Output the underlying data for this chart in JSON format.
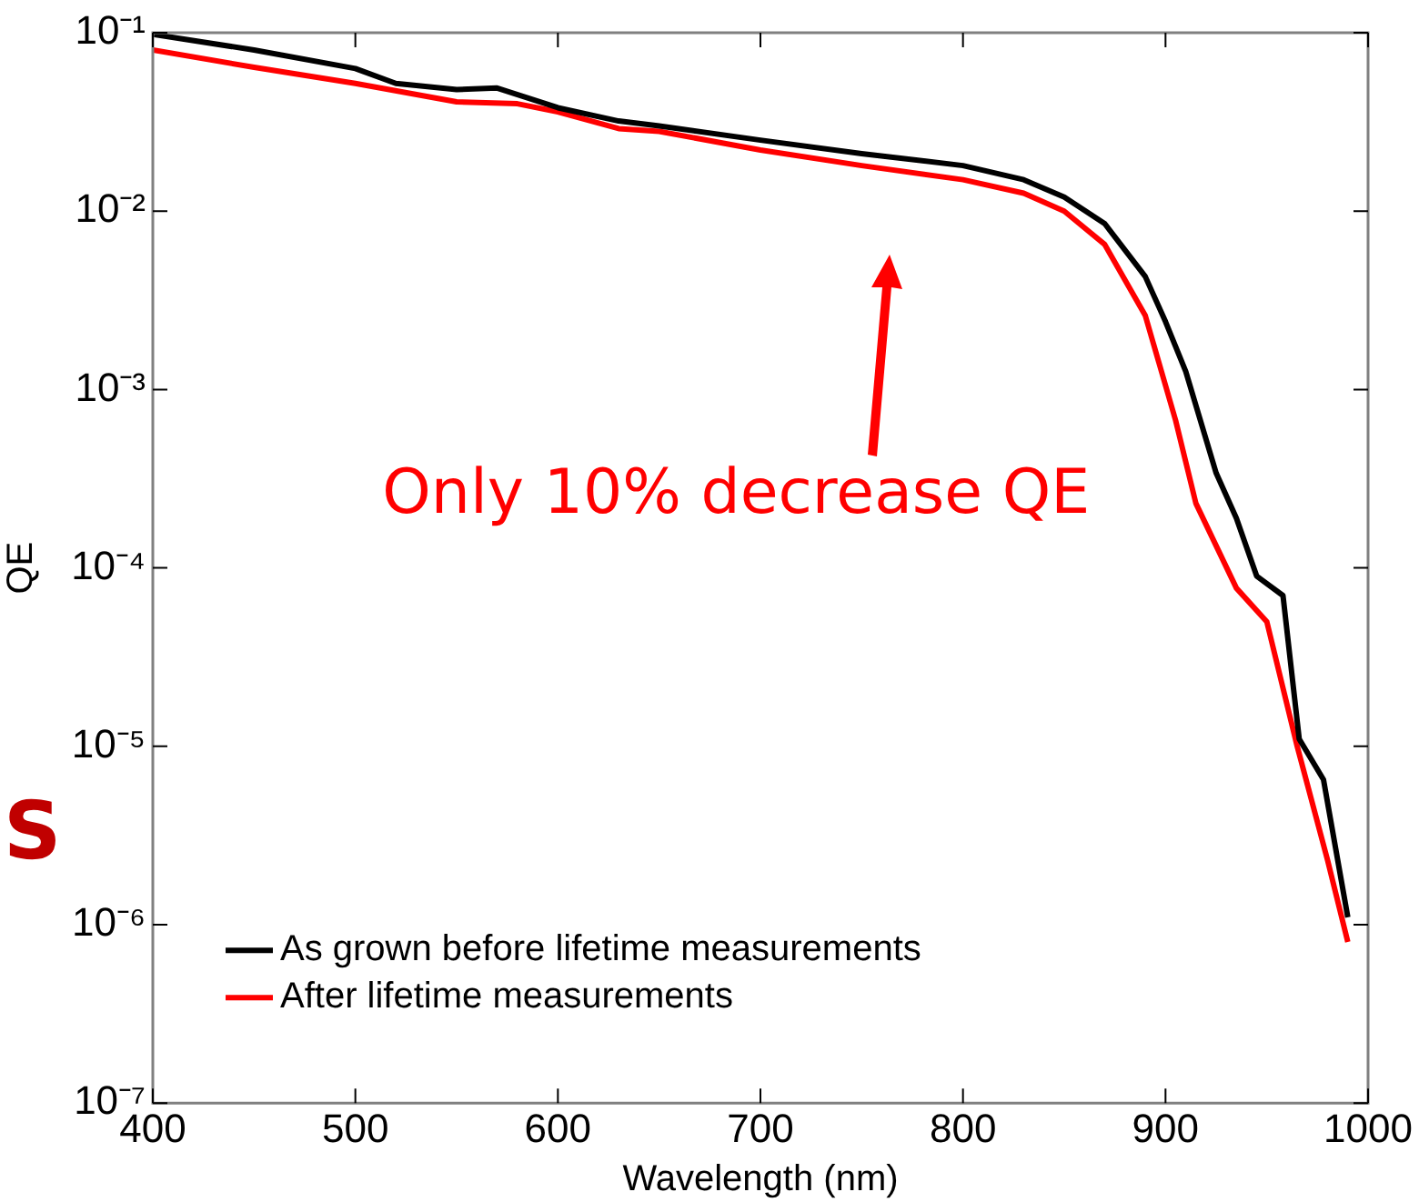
{
  "chart_data": {
    "type": "line",
    "xlabel": "Wavelength (nm)",
    "ylabel": "QE",
    "log": "y",
    "legend": "bottom left",
    "grid": false,
    "marker": "none",
    "line_style": "solid",
    "xlim": [
      400,
      1000
    ],
    "xticks": [
      400,
      500,
      600,
      700,
      800,
      900,
      1000
    ],
    "ylim": [
      1e-07,
      0.1
    ],
    "yticks": [
      {
        "value": 1e-07,
        "label": "10⁻⁷"
      },
      {
        "value": 1e-06,
        "label": "10⁻⁶"
      },
      {
        "value": 1e-05,
        "label": "10⁻⁵"
      },
      {
        "value": 0.0001,
        "label": "10⁻⁴"
      },
      {
        "value": 0.001,
        "label": "10⁻³"
      },
      {
        "value": 0.01,
        "label": "10⁻²"
      },
      {
        "value": 0.1,
        "label": "10⁻¹"
      }
    ],
    "annotations": [
      "Only 10% decrease QE",
      "S"
    ],
    "series": [
      {
        "name": "As grown before lifetime measurements",
        "color": "#000000",
        "x": [
          400,
          450,
          500,
          520,
          550,
          570,
          600,
          630,
          650,
          700,
          750,
          800,
          830,
          850,
          870,
          890,
          900,
          910,
          925,
          935,
          945,
          958,
          966,
          978,
          990
        ],
        "values": [
          0.098,
          0.08,
          0.063,
          0.052,
          0.048,
          0.049,
          0.038,
          0.032,
          0.03,
          0.025,
          0.021,
          0.018,
          0.015,
          0.012,
          0.0085,
          0.0043,
          0.0024,
          0.00126,
          0.00034,
          0.00019,
          9e-05,
          7e-05,
          1.1e-05,
          6.5e-06,
          1.1e-06
        ]
      },
      {
        "name": "After lifetime measurements",
        "color": "#ff0000",
        "x": [
          400,
          450,
          500,
          550,
          580,
          600,
          630,
          650,
          700,
          750,
          800,
          830,
          850,
          870,
          890,
          905,
          915,
          935,
          950,
          965,
          980,
          990
        ],
        "values": [
          0.08,
          0.064,
          0.052,
          0.041,
          0.04,
          0.036,
          0.029,
          0.028,
          0.022,
          0.018,
          0.015,
          0.0126,
          0.01,
          0.0065,
          0.0026,
          0.00067,
          0.00023,
          7.7e-05,
          5e-05,
          1e-05,
          2.3e-06,
          8e-07
        ]
      }
    ]
  }
}
